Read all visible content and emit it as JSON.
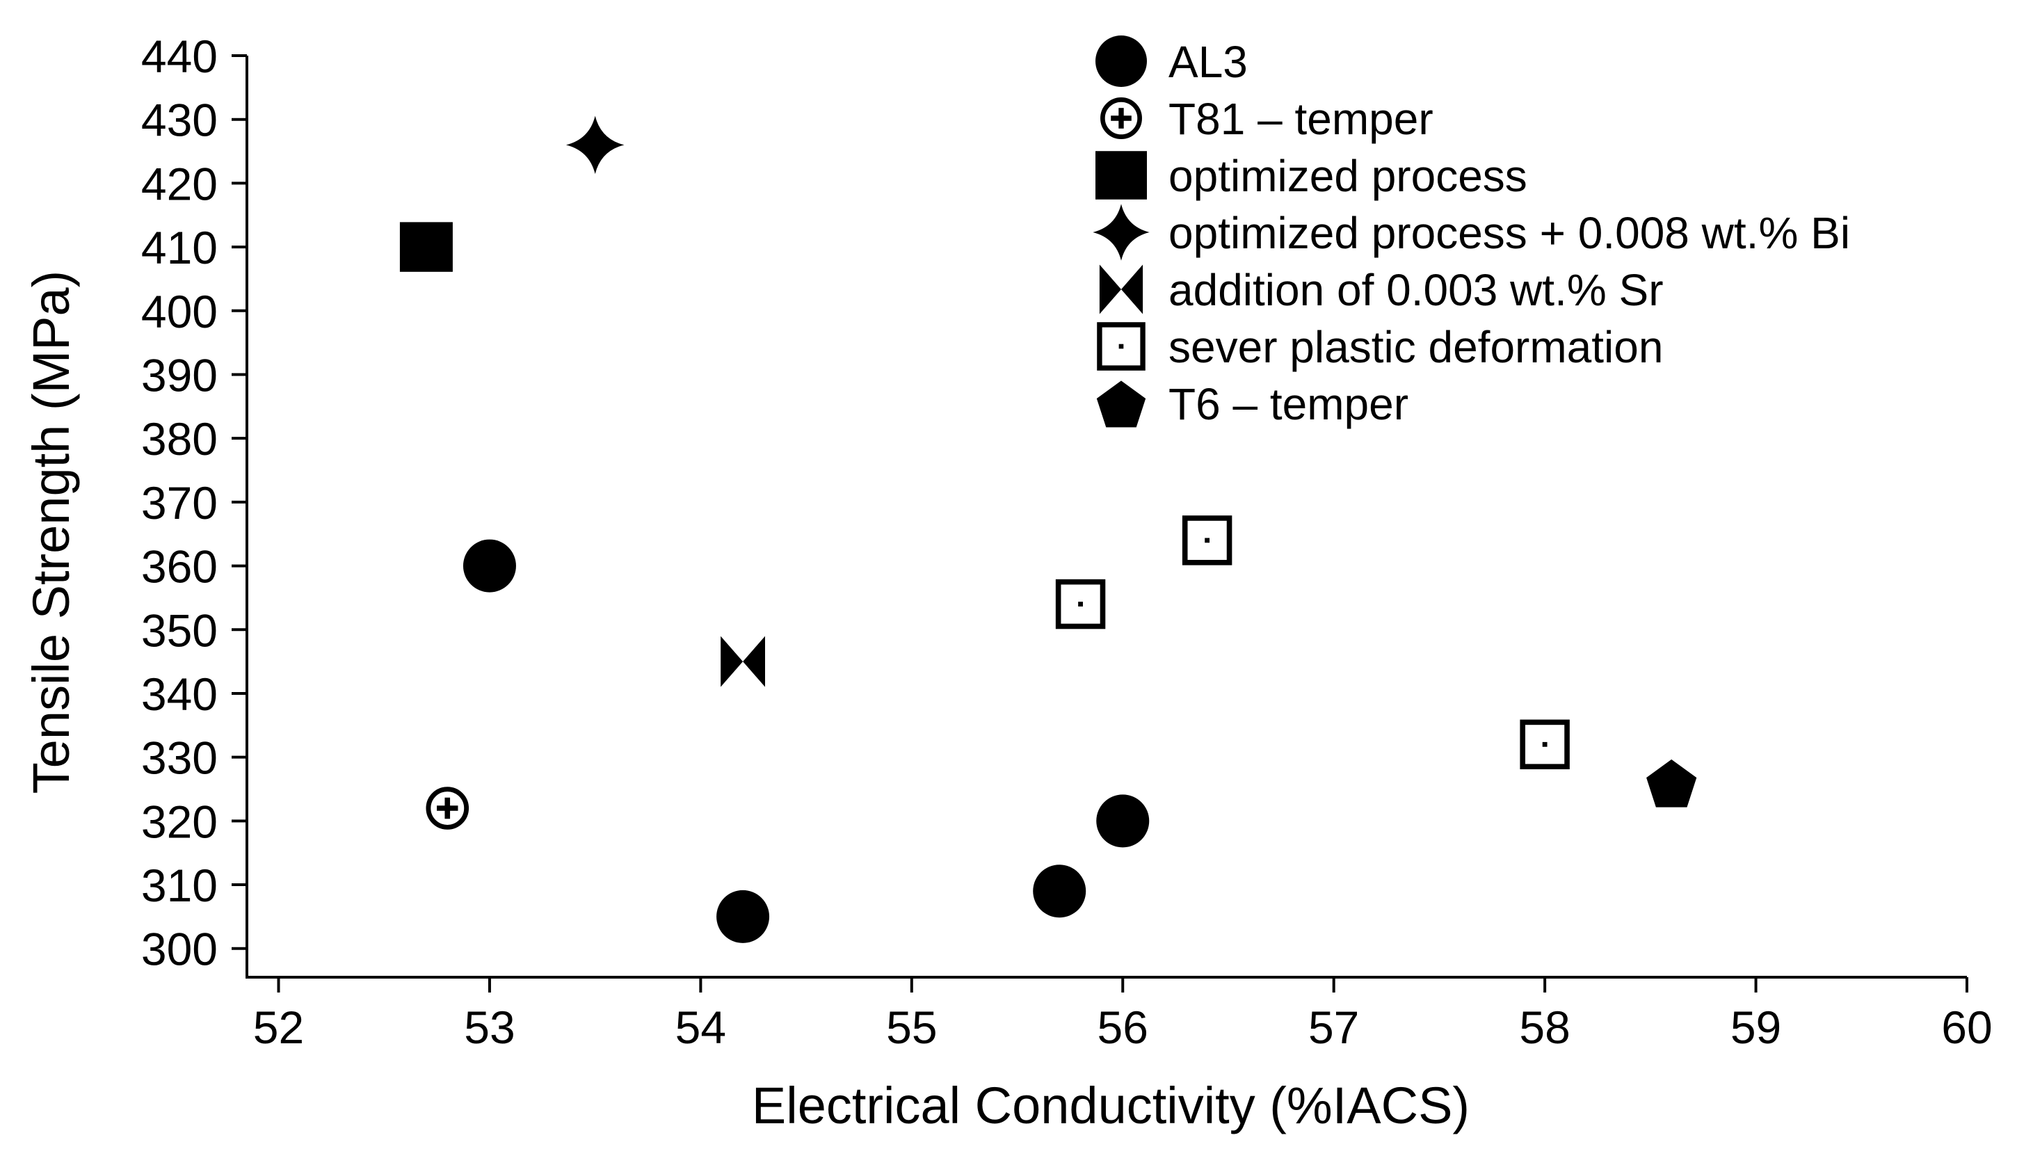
{
  "chart_data": {
    "type": "scatter",
    "title": "",
    "xlabel": "Electrical Conductivity (%IACS)",
    "ylabel": "Tensile Strength (MPa)",
    "xlim": [
      51.85,
      60
    ],
    "ylim": [
      295.5,
      440
    ],
    "xticks": [
      52,
      53,
      54,
      55,
      56,
      57,
      58,
      59,
      60
    ],
    "yticks": [
      300,
      310,
      320,
      330,
      340,
      350,
      360,
      370,
      380,
      390,
      400,
      410,
      420,
      430,
      440
    ],
    "grid": false,
    "legend_position": "top-right",
    "series": [
      {
        "name": "AL3",
        "marker": "circle",
        "points": [
          [
            53.0,
            360
          ],
          [
            54.2,
            305
          ],
          [
            55.7,
            309
          ],
          [
            56.0,
            320
          ]
        ]
      },
      {
        "name": "T81 – temper",
        "marker": "circle-plus",
        "points": [
          [
            52.8,
            322
          ]
        ]
      },
      {
        "name": "optimized process",
        "marker": "square",
        "points": [
          [
            52.7,
            410
          ]
        ]
      },
      {
        "name": "optimized process + 0.008 wt.% Bi",
        "marker": "star4",
        "points": [
          [
            53.5,
            426
          ]
        ]
      },
      {
        "name": "addition of 0.003 wt.% Sr",
        "marker": "bowtie",
        "points": [
          [
            54.2,
            345
          ]
        ]
      },
      {
        "name": "sever plastic deformation",
        "marker": "square-dot",
        "points": [
          [
            55.8,
            354
          ],
          [
            56.4,
            364
          ],
          [
            58.0,
            332
          ]
        ]
      },
      {
        "name": "T6 – temper",
        "marker": "pentagon",
        "points": [
          [
            58.6,
            326
          ]
        ]
      }
    ]
  }
}
